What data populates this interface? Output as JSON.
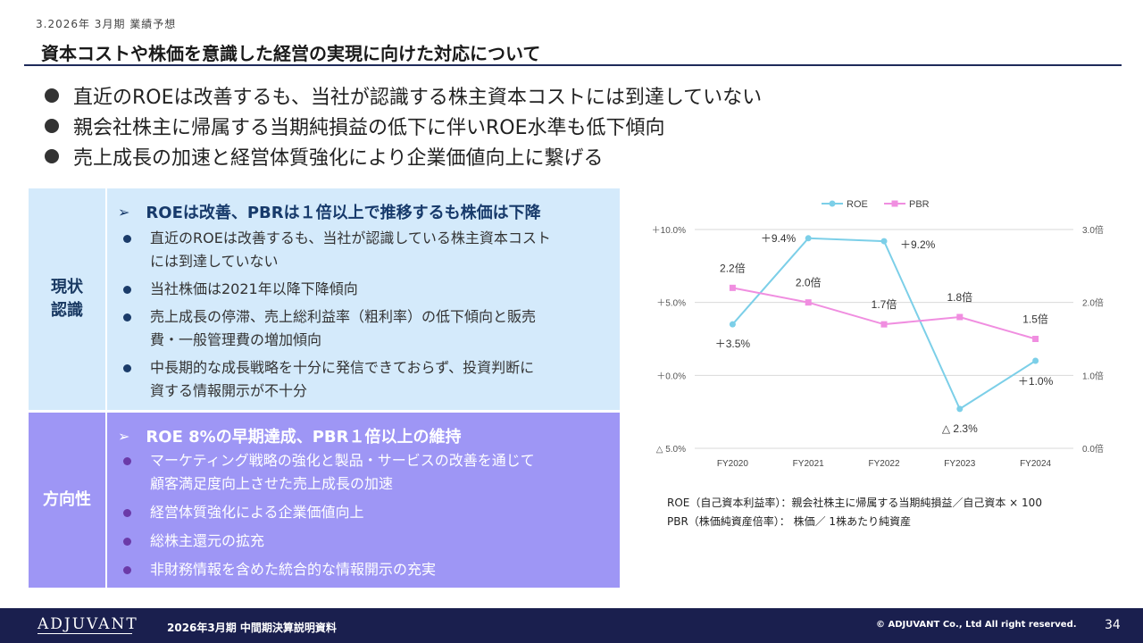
{
  "section_label": "3.2026年 3月期 業績予想",
  "title": "資本コストや株価を意識した経営の実現に向けた対応について",
  "bullets": [
    "直近のROEは改善するも、当社が認識する株主資本コストには到達していない",
    "親会社株主に帰属する当期純損益の低下に伴いROE水準も低下傾向",
    "売上成長の加速と経営体質強化により企業価値向上に繋げる"
  ],
  "current": {
    "label": "現状\n認識",
    "arrow": "➢",
    "heading": "ROEは改善、PBRは１倍以上で推移するも株価は下降",
    "items": [
      [
        "直近のROEは改善するも、当社が認識している株主資本コスト",
        "には到達していない"
      ],
      [
        "当社株価は2021年以降下降傾向"
      ],
      [
        "売上成長の停滞、売上総利益率（粗利率）の低下傾向と販売",
        "費・一般管理費の増加傾向"
      ],
      [
        "中長期的な成長戦略を十分に発信できておらず、投資判断に",
        "資する情報開示が不十分"
      ]
    ]
  },
  "direction": {
    "label": "方向性",
    "arrow": "➢",
    "heading": "ROE 8%の早期達成、PBR１倍以上の維持",
    "items": [
      [
        "マーケティング戦略の強化と製品・サービスの改善を通じて",
        "顧客満足度向上させた売上成長の加速"
      ],
      [
        "経営体質強化による企業価値向上"
      ],
      [
        "総株主還元の拡充"
      ],
      [
        "非財務情報を含めた統合的な情報開示の充実"
      ]
    ]
  },
  "chart_data": {
    "type": "line",
    "categories": [
      "FY2020",
      "FY2021",
      "FY2022",
      "FY2023",
      "FY2024"
    ],
    "series": [
      {
        "name": "ROE",
        "axis": "left",
        "color": "#7ccfe8",
        "values": [
          3.5,
          9.4,
          9.2,
          -2.3,
          1.0
        ],
        "labels": [
          "＋3.5%",
          "＋9.4%",
          "＋9.2%",
          "△ 2.3%",
          "＋1.0%"
        ]
      },
      {
        "name": "PBR",
        "axis": "right",
        "color": "#f08ee0",
        "values": [
          2.2,
          2.0,
          1.7,
          1.8,
          1.5
        ],
        "labels": [
          "2.2倍",
          "2.0倍",
          "1.7倍",
          "1.8倍",
          "1.5倍"
        ]
      }
    ],
    "y_left": {
      "min": -5,
      "max": 10,
      "ticks": [
        -5,
        0,
        5,
        10
      ],
      "tick_labels": [
        "△ 5.0%",
        "＋0.0%",
        "＋5.0%",
        "＋10.0%"
      ]
    },
    "y_right": {
      "min": 0,
      "max": 3,
      "ticks": [
        0,
        1,
        2,
        3
      ],
      "tick_labels": [
        "0.0倍",
        "1.0倍",
        "2.0倍",
        "3.0倍"
      ]
    },
    "legend": "top",
    "grid": true
  },
  "notes": [
    "ROE（自己資本利益率）：親会社株主に帰属する当期純損益／自己資本 × 100",
    "PBR（株価純資産倍率）： 株価／ 1株あたり純資産"
  ],
  "footer": {
    "logo": "ADJUVANT",
    "doc": "2026年3月期 中間期決算説明資料",
    "copyright": "© ADJUVANT Co., Ltd All right reserved.",
    "page": "34"
  }
}
